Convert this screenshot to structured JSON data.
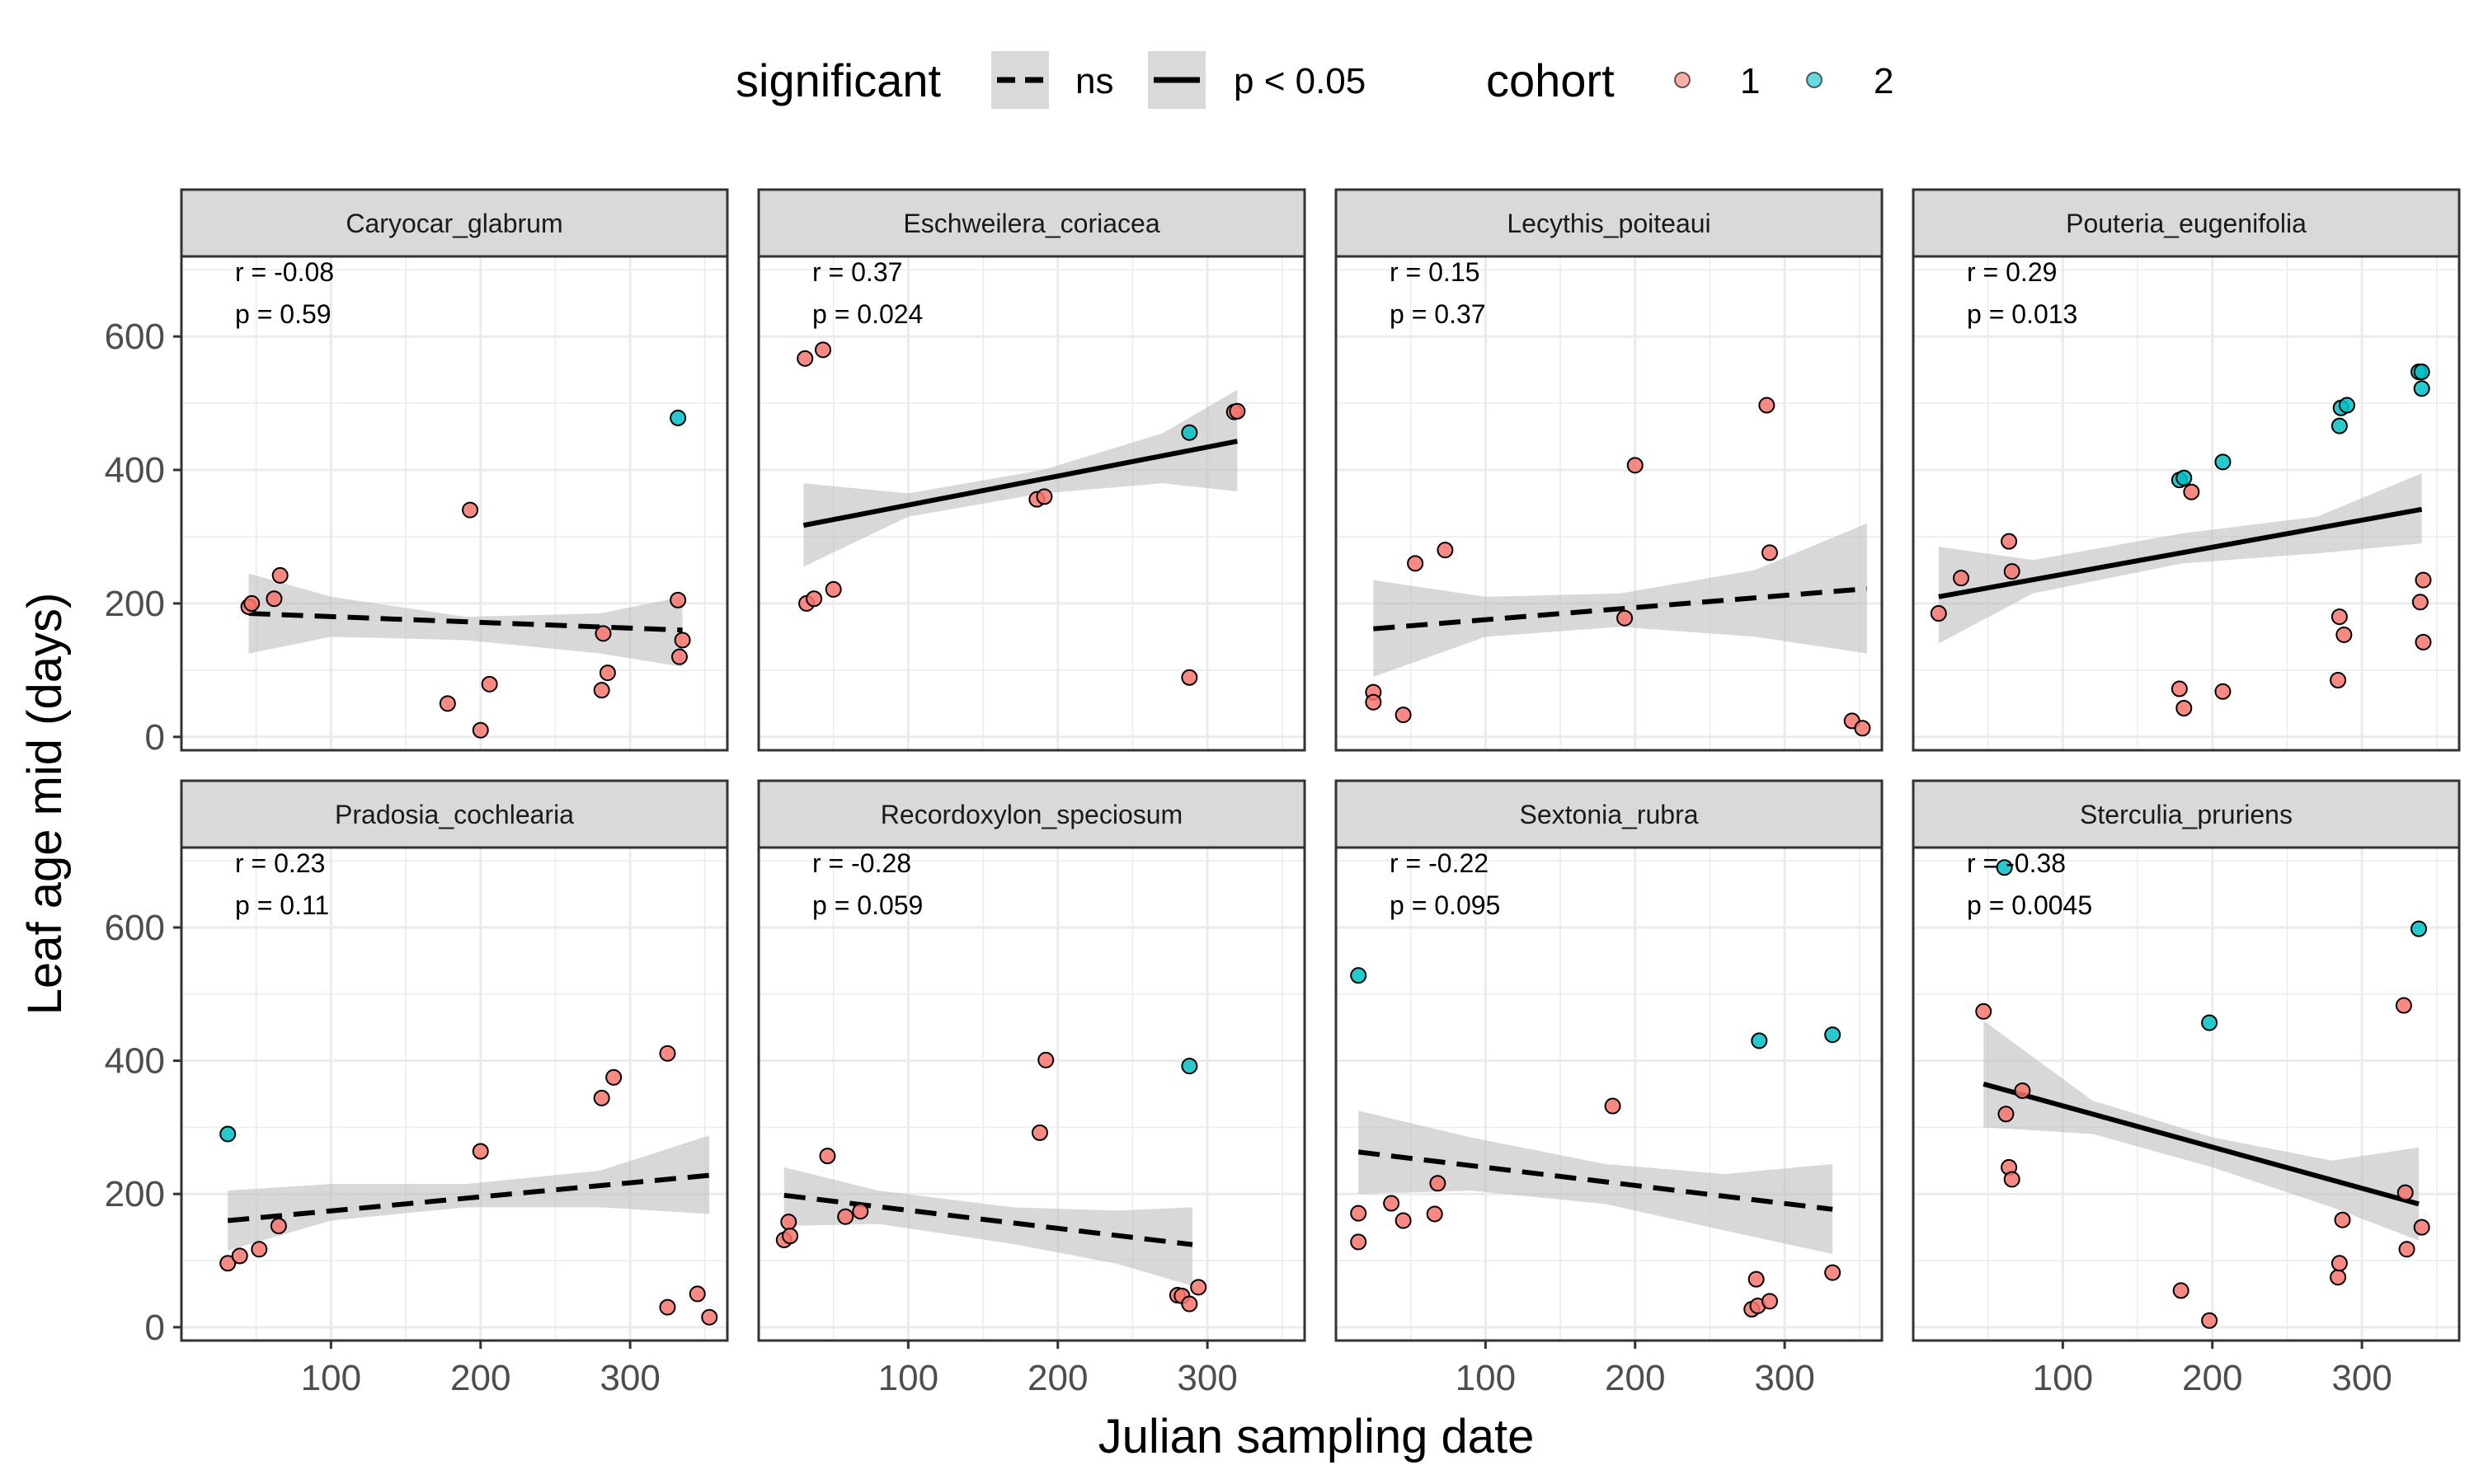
{
  "chart_data": {
    "type": "scatter",
    "xlabel": "Julian sampling date",
    "ylabel": "Leaf age mid (days)",
    "xlim": [
      0,
      365
    ],
    "ylim": [
      -20,
      720
    ],
    "x_ticks": [
      100,
      200,
      300
    ],
    "y_ticks": [
      0,
      200,
      400,
      600
    ],
    "grid": true,
    "layout": "2 rows x 4 columns, shared axes",
    "legend": {
      "position": "top",
      "significant_title": "significant",
      "significant_items": [
        {
          "label": "ns",
          "linetype": "dashed"
        },
        {
          "label": "p < 0.05",
          "linetype": "solid"
        }
      ],
      "cohort_title": "cohort",
      "cohort_items": [
        {
          "label": "1",
          "color": "#F8766D"
        },
        {
          "label": "2",
          "color": "#00BFC4"
        }
      ]
    },
    "colors": {
      "cohort_1": "#F8766D",
      "cohort_2": "#00BFC4",
      "ribbon": "#BEBEBE",
      "strip": "#D9D9D9",
      "grid": "#EBEBEB"
    },
    "panels": [
      {
        "title": "Caryocar_glabrum",
        "r": "r = -0.08",
        "p": "p = 0.59",
        "significant": "ns",
        "fit": {
          "x": [
            45,
            335
          ],
          "y": [
            185,
            160
          ]
        },
        "band": {
          "x": [
            45,
            100,
            190,
            280,
            335
          ],
          "lower": [
            125,
            150,
            145,
            125,
            105
          ],
          "upper": [
            245,
            210,
            180,
            185,
            210
          ]
        },
        "points": [
          [
            45,
            195,
            1
          ],
          [
            47,
            200,
            1
          ],
          [
            62,
            207,
            1
          ],
          [
            66,
            242,
            1
          ],
          [
            178,
            50,
            1
          ],
          [
            193,
            340,
            1
          ],
          [
            200,
            10,
            1
          ],
          [
            206,
            79,
            1
          ],
          [
            281,
            70,
            1
          ],
          [
            282,
            155,
            1
          ],
          [
            285,
            96,
            1
          ],
          [
            332,
            478,
            2
          ],
          [
            332,
            205,
            1
          ],
          [
            333,
            120,
            1
          ],
          [
            335,
            145,
            1
          ]
        ]
      },
      {
        "title": "Eschweilera_coriacea",
        "r": "r = 0.37",
        "p": "p = 0.024",
        "significant": "p < 0.05",
        "fit": {
          "x": [
            30,
            320
          ],
          "y": [
            317,
            443
          ]
        },
        "band": {
          "x": [
            30,
            100,
            190,
            270,
            320
          ],
          "lower": [
            255,
            330,
            365,
            380,
            368
          ],
          "upper": [
            380,
            365,
            400,
            455,
            520
          ]
        },
        "points": [
          [
            31,
            567,
            1
          ],
          [
            32,
            200,
            1
          ],
          [
            37,
            207,
            1
          ],
          [
            43,
            580,
            1
          ],
          [
            50,
            221,
            1
          ],
          [
            186,
            356,
            1
          ],
          [
            191,
            360,
            1
          ],
          [
            288,
            89,
            1
          ],
          [
            288,
            456,
            2
          ],
          [
            318,
            487,
            1
          ],
          [
            320,
            488,
            1
          ]
        ]
      },
      {
        "title": "Lecythis_poiteaui",
        "r": "r = 0.15",
        "p": "p = 0.37",
        "significant": "ns",
        "fit": {
          "x": [
            25,
            355
          ],
          "y": [
            162,
            222
          ]
        },
        "band": {
          "x": [
            25,
            100,
            190,
            280,
            355
          ],
          "lower": [
            90,
            150,
            165,
            150,
            125
          ],
          "upper": [
            235,
            210,
            215,
            250,
            320
          ]
        },
        "points": [
          [
            25,
            67,
            1
          ],
          [
            25,
            52,
            1
          ],
          [
            45,
            33,
            1
          ],
          [
            53,
            260,
            1
          ],
          [
            73,
            280,
            1
          ],
          [
            193,
            178,
            1
          ],
          [
            200,
            407,
            1
          ],
          [
            288,
            497,
            1
          ],
          [
            290,
            276,
            1
          ],
          [
            345,
            24,
            1
          ],
          [
            352,
            13,
            1
          ]
        ]
      },
      {
        "title": "Pouteria_eugenifolia",
        "r": "r = 0.29",
        "p": "p = 0.013",
        "significant": "p < 0.05",
        "fit": {
          "x": [
            17,
            340
          ],
          "y": [
            210,
            341
          ]
        },
        "band": {
          "x": [
            17,
            80,
            180,
            270,
            340
          ],
          "lower": [
            140,
            215,
            260,
            275,
            290
          ],
          "upper": [
            285,
            265,
            305,
            330,
            395
          ]
        },
        "points": [
          [
            17,
            185,
            1
          ],
          [
            32,
            238,
            1
          ],
          [
            64,
            293,
            1
          ],
          [
            66,
            248,
            1
          ],
          [
            178,
            72,
            1
          ],
          [
            178,
            385,
            2
          ],
          [
            181,
            43,
            1
          ],
          [
            181,
            388,
            2
          ],
          [
            186,
            367,
            1
          ],
          [
            207,
            412,
            2
          ],
          [
            207,
            68,
            1
          ],
          [
            284,
            85,
            1
          ],
          [
            285,
            180,
            1
          ],
          [
            285,
            466,
            2
          ],
          [
            286,
            493,
            2
          ],
          [
            288,
            153,
            1
          ],
          [
            290,
            497,
            2
          ],
          [
            338,
            547,
            2
          ],
          [
            339,
            202,
            1
          ],
          [
            340,
            547,
            2
          ],
          [
            340,
            522,
            2
          ],
          [
            341,
            235,
            1
          ],
          [
            341,
            142,
            1
          ]
        ]
      },
      {
        "title": "Pradosia_cochlearia",
        "r": "r = 0.23",
        "p": "p = 0.11",
        "significant": "ns",
        "fit": {
          "x": [
            31,
            353
          ],
          "y": [
            160,
            228
          ]
        },
        "band": {
          "x": [
            31,
            100,
            190,
            280,
            353
          ],
          "lower": [
            115,
            160,
            180,
            180,
            170
          ],
          "upper": [
            205,
            215,
            215,
            235,
            288
          ]
        },
        "points": [
          [
            31,
            290,
            2
          ],
          [
            31,
            96,
            1
          ],
          [
            39,
            107,
            1
          ],
          [
            52,
            117,
            1
          ],
          [
            65,
            152,
            1
          ],
          [
            200,
            264,
            1
          ],
          [
            281,
            344,
            1
          ],
          [
            289,
            375,
            1
          ],
          [
            325,
            411,
            1
          ],
          [
            325,
            30,
            1
          ],
          [
            345,
            50,
            1
          ],
          [
            353,
            15,
            1
          ]
        ]
      },
      {
        "title": "Recordoxylon_speciosum",
        "r": "r = -0.28",
        "p": "p = 0.059",
        "significant": "ns",
        "fit": {
          "x": [
            17,
            290
          ],
          "y": [
            198,
            124
          ]
        },
        "band": {
          "x": [
            17,
            80,
            170,
            240,
            290
          ],
          "lower": [
            152,
            155,
            125,
            95,
            62
          ],
          "upper": [
            240,
            205,
            180,
            175,
            180
          ]
        },
        "points": [
          [
            17,
            131,
            1
          ],
          [
            20,
            158,
            1
          ],
          [
            21,
            137,
            1
          ],
          [
            46,
            257,
            1
          ],
          [
            58,
            166,
            1
          ],
          [
            68,
            174,
            1
          ],
          [
            188,
            292,
            1
          ],
          [
            192,
            401,
            1
          ],
          [
            280,
            48,
            1
          ],
          [
            283,
            47,
            1
          ],
          [
            288,
            35,
            1
          ],
          [
            288,
            392,
            2
          ],
          [
            294,
            60,
            1
          ]
        ]
      },
      {
        "title": "Sextonia_rubra",
        "r": "r = -0.22",
        "p": "p = 0.095",
        "significant": "ns",
        "fit": {
          "x": [
            15,
            332
          ],
          "y": [
            263,
            177
          ]
        },
        "band": {
          "x": [
            15,
            90,
            180,
            260,
            332
          ],
          "lower": [
            200,
            205,
            185,
            145,
            110
          ],
          "upper": [
            325,
            285,
            245,
            230,
            245
          ]
        },
        "points": [
          [
            15,
            528,
            2
          ],
          [
            15,
            171,
            1
          ],
          [
            15,
            128,
            1
          ],
          [
            37,
            186,
            1
          ],
          [
            45,
            160,
            1
          ],
          [
            66,
            170,
            1
          ],
          [
            68,
            216,
            1
          ],
          [
            185,
            332,
            1
          ],
          [
            278,
            27,
            1
          ],
          [
            281,
            72,
            1
          ],
          [
            282,
            32,
            1
          ],
          [
            283,
            430,
            2
          ],
          [
            290,
            39,
            1
          ],
          [
            332,
            439,
            2
          ],
          [
            332,
            82,
            1
          ]
        ]
      },
      {
        "title": "Sterculia_pruriens",
        "r": "r = -0.38",
        "p": "p = 0.0045",
        "significant": "p < 0.05",
        "fit": {
          "x": [
            47,
            338
          ],
          "y": [
            365,
            185
          ]
        },
        "band": {
          "x": [
            47,
            120,
            200,
            280,
            338
          ],
          "lower": [
            300,
            290,
            240,
            180,
            130
          ],
          "upper": [
            460,
            340,
            285,
            250,
            270
          ]
        },
        "points": [
          [
            47,
            474,
            1
          ],
          [
            61,
            690,
            2
          ],
          [
            62,
            320,
            1
          ],
          [
            64,
            240,
            1
          ],
          [
            66,
            222,
            1
          ],
          [
            73,
            355,
            1
          ],
          [
            179,
            55,
            1
          ],
          [
            198,
            457,
            2
          ],
          [
            198,
            10,
            1
          ],
          [
            284,
            75,
            1
          ],
          [
            285,
            96,
            1
          ],
          [
            287,
            161,
            1
          ],
          [
            328,
            483,
            1
          ],
          [
            329,
            202,
            1
          ],
          [
            330,
            117,
            1
          ],
          [
            338,
            598,
            2
          ],
          [
            340,
            150,
            1
          ]
        ]
      }
    ]
  }
}
